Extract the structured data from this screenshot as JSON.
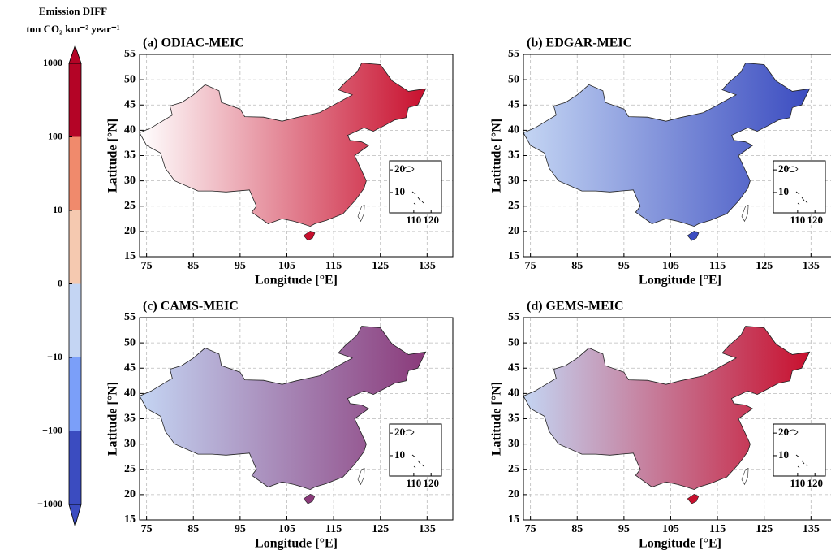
{
  "colorbar": {
    "title": "Emission DIFF",
    "unit": "ton CO₂ km⁻² year⁻¹",
    "ticks": [
      1000,
      100,
      10,
      0,
      {
        "value": -10,
        "label": "−10"
      },
      {
        "value": -100,
        "label": "−100"
      },
      {
        "value": -1000,
        "label": "−1000"
      }
    ],
    "colors": [
      "#b40426",
      "#f08a6c",
      "#f5c9b0",
      "#c4d5f3",
      "#7b9ff9",
      "#3b4cc0"
    ]
  },
  "panels": [
    {
      "title": "(a) ODIAC-MEIC",
      "xlabel": "Longitude [°E]",
      "ylabel": "Latitude [°N]",
      "xlim": [
        73.5,
        140.5
      ],
      "ylim": [
        15,
        55
      ],
      "xticks": [
        75,
        85,
        95,
        105,
        115,
        125,
        135
      ],
      "yticks": [
        15,
        20,
        25,
        30,
        35,
        40,
        45,
        50,
        55
      ],
      "colors": [
        "#ffffff",
        "#c8102e"
      ],
      "inset": {
        "xlim": [
          96,
          126
        ],
        "ylim": [
          1,
          24
        ],
        "xticks": [
          110,
          120
        ],
        "yticks": [
          10,
          20
        ]
      }
    },
    {
      "title": "(b) EDGAR-MEIC",
      "xlabel": "Longitude [°E]",
      "ylabel": "Latitude [°N]",
      "xlim": [
        73.5,
        140.5
      ],
      "ylim": [
        15,
        55
      ],
      "xticks": [
        75,
        85,
        95,
        105,
        115,
        125,
        135
      ],
      "yticks": [
        15,
        20,
        25,
        30,
        35,
        40,
        45,
        50,
        55
      ],
      "colors": [
        "#c4d5f3",
        "#3b4cc0"
      ],
      "inset": {
        "xlim": [
          96,
          126
        ],
        "ylim": [
          1,
          24
        ],
        "xticks": [
          110,
          120
        ],
        "yticks": [
          10,
          20
        ]
      }
    },
    {
      "title": "(c) CAMS-MEIC",
      "xlabel": "Longitude [°E]",
      "ylabel": "Latitude [°N]",
      "xlim": [
        73.5,
        140.5
      ],
      "ylim": [
        15,
        55
      ],
      "xticks": [
        75,
        85,
        95,
        105,
        115,
        125,
        135
      ],
      "yticks": [
        15,
        20,
        25,
        30,
        35,
        40,
        45,
        50,
        55
      ],
      "colors": [
        "#c4d5f3",
        "#8a3a7a"
      ],
      "inset": {
        "xlim": [
          96,
          126
        ],
        "ylim": [
          1,
          24
        ],
        "xticks": [
          110,
          120
        ],
        "yticks": [
          10,
          20
        ]
      }
    },
    {
      "title": "(d) GEMS-MEIC",
      "xlabel": "Longitude [°E]",
      "ylabel": "Latitude [°N]",
      "xlim": [
        73.5,
        140.5
      ],
      "ylim": [
        15,
        55
      ],
      "xticks": [
        75,
        85,
        95,
        105,
        115,
        125,
        135
      ],
      "yticks": [
        15,
        20,
        25,
        30,
        35,
        40,
        45,
        50,
        55
      ],
      "colors": [
        "#c4d5f3",
        "#c8102e"
      ],
      "inset": {
        "xlim": [
          96,
          126
        ],
        "ylim": [
          1,
          24
        ],
        "xticks": [
          110,
          120
        ],
        "yticks": [
          10,
          20
        ]
      }
    }
  ]
}
